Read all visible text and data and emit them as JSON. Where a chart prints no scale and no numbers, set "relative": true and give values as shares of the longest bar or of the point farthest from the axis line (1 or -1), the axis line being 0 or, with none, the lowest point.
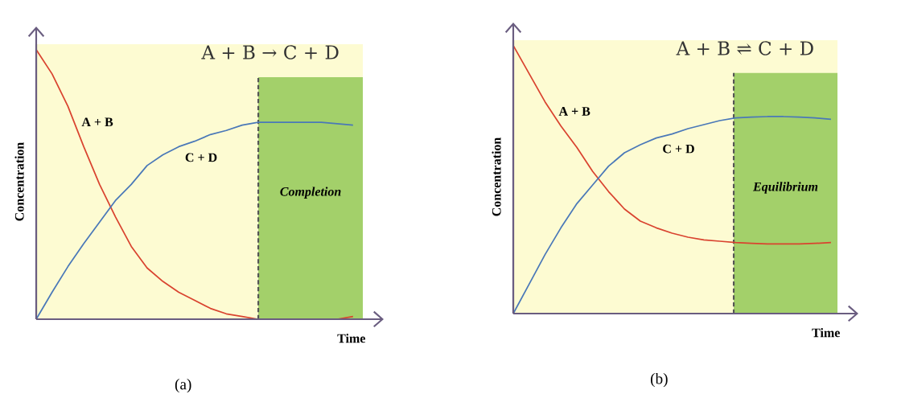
{
  "chart_data": [
    {
      "type": "line",
      "title": "A + B → C + D",
      "xlabel": "Time",
      "ylabel": "Concentration",
      "relative": true,
      "tick_labels": false,
      "categories": [
        null,
        null,
        null,
        null,
        null,
        null,
        null,
        null,
        null,
        null,
        null,
        null,
        null,
        null,
        null,
        null,
        null,
        null,
        null,
        null,
        null
      ],
      "series": [
        {
          "name": "A + B",
          "color": "#d9432f",
          "values": [
            1,
            0.91,
            0.79,
            0.64,
            0.5,
            0.38,
            0.27,
            0.19,
            0.14,
            0.1,
            0.07,
            0.04,
            0.02,
            0.01,
            0,
            0,
            0,
            0,
            0,
            0,
            0.01
          ]
        },
        {
          "name": "C + D",
          "color": "#4a78b8",
          "values": [
            0,
            0.1,
            0.195,
            0.28,
            0.36,
            0.44,
            0.5,
            0.57,
            0.61,
            0.64,
            0.66,
            0.685,
            0.7,
            0.72,
            0.73,
            0.73,
            0.73,
            0.73,
            0.73,
            0.725,
            0.72
          ]
        }
      ],
      "annotations": [
        "Completion",
        "(a)"
      ]
    },
    {
      "type": "line",
      "title": "A + B ⇌ C + D",
      "xlabel": "Time",
      "ylabel": "Concentration",
      "relative": true,
      "tick_labels": false,
      "categories": [
        null,
        null,
        null,
        null,
        null,
        null,
        null,
        null,
        null,
        null,
        null,
        null,
        null,
        null,
        null,
        null,
        null,
        null,
        null,
        null,
        null
      ],
      "series": [
        {
          "name": "A + B",
          "color": "#d9432f",
          "values": [
            1,
            0.895,
            0.79,
            0.7,
            0.62,
            0.53,
            0.455,
            0.39,
            0.345,
            0.32,
            0.3,
            0.285,
            0.275,
            0.27,
            0.265,
            0.262,
            0.26,
            0.26,
            0.26,
            0.262,
            0.265
          ]
        },
        {
          "name": "C + D",
          "color": "#4a78b8",
          "values": [
            0,
            0.11,
            0.22,
            0.32,
            0.41,
            0.48,
            0.55,
            0.6,
            0.63,
            0.655,
            0.67,
            0.69,
            0.705,
            0.72,
            0.73,
            0.733,
            0.735,
            0.735,
            0.733,
            0.73,
            0.725
          ]
        }
      ],
      "annotations": [
        "Equilibrium",
        "(b)"
      ]
    }
  ]
}
